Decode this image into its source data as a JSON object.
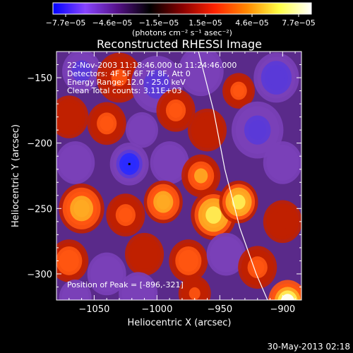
{
  "chart_data": {
    "type": "heatmap",
    "title": "Reconstructed RHESSI Image",
    "xlabel": "Heliocentric X (arcsec)",
    "ylabel": "Heliocentric Y (arcsec)",
    "xlim": [
      -1080,
      -885
    ],
    "ylim": [
      -320,
      -130
    ],
    "xticks": [
      -1050,
      -1000,
      -950,
      -900
    ],
    "yticks": [
      -300,
      -250,
      -200,
      -150
    ],
    "colorbar": {
      "unit_label": "(photons cm⁻² s⁻¹ asec⁻²)",
      "range": [
        -7.7e-05,
        7.7e-05
      ],
      "ticks": [
        "−7.7e−05",
        "−4.6e−05",
        "−1.5e−05",
        "1.5e−05",
        "4.6e−05",
        "7.7e−05"
      ],
      "colors": [
        "#0000ff",
        "#8844ff",
        "#551188",
        "#000000",
        "#880000",
        "#ff2200",
        "#ff8800",
        "#ffff44",
        "#ffffff"
      ]
    },
    "annotations": [
      "22-Nov-2003 11:18:46.000 to 11:24:46.000",
      "Detectors: 4F 5F 6F 7F 8F, Att 0",
      "Energy Range: 12.0 - 25.0 keV",
      "Clean     Total counts: 3.11E+03"
    ],
    "peak_label": "Position of Peak = [-896,-321]",
    "peak": [
      -896,
      -321
    ],
    "limb_curve": [
      [
        -967,
        -130
      ],
      [
        -955,
        -175
      ],
      [
        -946,
        -220
      ],
      [
        -934,
        -265
      ],
      [
        -921,
        -300
      ],
      [
        -912,
        -320
      ]
    ],
    "blobs": [
      {
        "x": -1060,
        "y": -145,
        "v": -0.7,
        "r": 12
      },
      {
        "x": -1030,
        "y": -150,
        "v": 0.45,
        "r": 14
      },
      {
        "x": -1000,
        "y": -155,
        "v": -0.8,
        "r": 16
      },
      {
        "x": -965,
        "y": -145,
        "v": -0.6,
        "r": 14
      },
      {
        "x": -935,
        "y": -160,
        "v": 0.5,
        "r": 10
      },
      {
        "x": -905,
        "y": -150,
        "v": -0.85,
        "r": 14
      },
      {
        "x": -1070,
        "y": -180,
        "v": 0.3,
        "r": 12
      },
      {
        "x": -1040,
        "y": -185,
        "v": 0.55,
        "r": 12
      },
      {
        "x": -1012,
        "y": -190,
        "v": -0.4,
        "r": 10
      },
      {
        "x": -985,
        "y": -175,
        "v": 0.5,
        "r": 12
      },
      {
        "x": -960,
        "y": -190,
        "v": 0.35,
        "r": 12
      },
      {
        "x": -920,
        "y": -190,
        "v": -0.7,
        "r": 16
      },
      {
        "x": -1022,
        "y": -216,
        "v": -1.0,
        "r": 12
      },
      {
        "x": -1065,
        "y": -215,
        "v": -0.5,
        "r": 12
      },
      {
        "x": -990,
        "y": -215,
        "v": -0.3,
        "r": 12
      },
      {
        "x": -965,
        "y": -225,
        "v": 0.65,
        "r": 12
      },
      {
        "x": -900,
        "y": -215,
        "v": -0.6,
        "r": 12
      },
      {
        "x": -1060,
        "y": -250,
        "v": 0.7,
        "r": 14
      },
      {
        "x": -1025,
        "y": -255,
        "v": 0.55,
        "r": 12
      },
      {
        "x": -995,
        "y": -245,
        "v": 0.7,
        "r": 12
      },
      {
        "x": -955,
        "y": -255,
        "v": 0.9,
        "r": 14
      },
      {
        "x": -935,
        "y": -245,
        "v": 0.85,
        "r": 12
      },
      {
        "x": -900,
        "y": -260,
        "v": 0.4,
        "r": 12
      },
      {
        "x": -1070,
        "y": -290,
        "v": 0.6,
        "r": 12
      },
      {
        "x": -1040,
        "y": -300,
        "v": -0.5,
        "r": 12
      },
      {
        "x": -1010,
        "y": -285,
        "v": 0.4,
        "r": 12
      },
      {
        "x": -975,
        "y": -290,
        "v": 0.6,
        "r": 12
      },
      {
        "x": -945,
        "y": -285,
        "v": -0.6,
        "r": 12
      },
      {
        "x": -920,
        "y": -295,
        "v": 0.5,
        "r": 12
      },
      {
        "x": -1065,
        "y": -318,
        "v": -0.4,
        "r": 10
      },
      {
        "x": -1015,
        "y": -315,
        "v": -0.5,
        "r": 12
      },
      {
        "x": -970,
        "y": -315,
        "v": 0.45,
        "r": 10
      },
      {
        "x": -896,
        "y": -321,
        "v": 1.0,
        "r": 12
      }
    ]
  },
  "footer": {
    "timestamp": "30-May-2013 02:18"
  }
}
